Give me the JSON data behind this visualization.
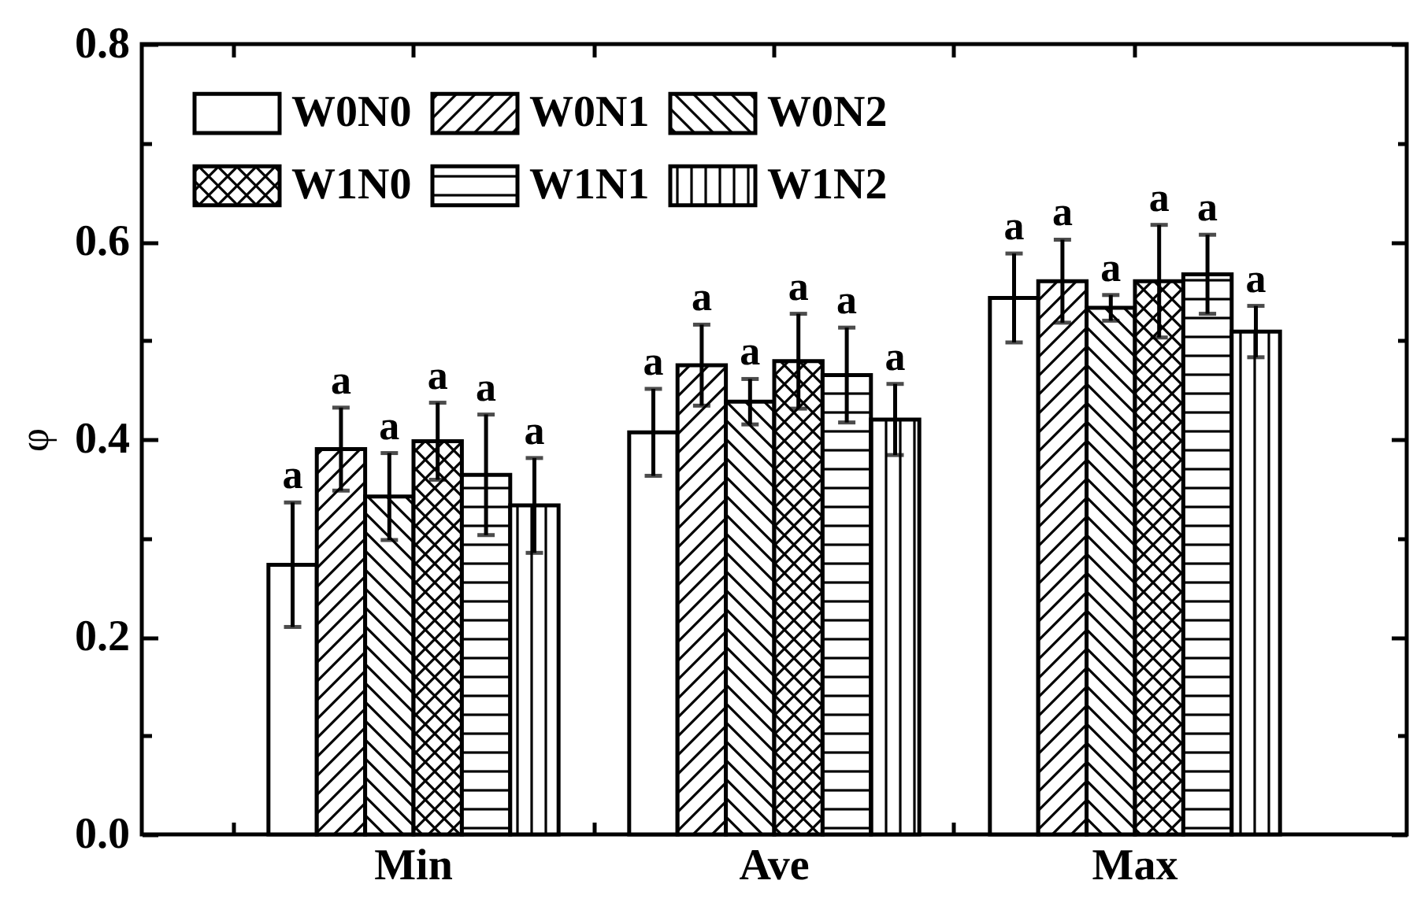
{
  "chart_data": {
    "type": "bar",
    "ylabel": "φ",
    "categories": [
      "Min",
      "Ave",
      "Max"
    ],
    "ylim": [
      0,
      0.8
    ],
    "yticks": [
      {
        "value": 0,
        "label": "0.0"
      },
      {
        "value": 0.1,
        "label": null
      },
      0.2,
      {
        "value": 0.3,
        "label": null
      },
      0.4,
      {
        "value": 0.5,
        "label": null
      },
      0.6,
      {
        "value": 0.7,
        "label": null
      },
      0.8
    ],
    "legend": "top left",
    "series": [
      {
        "name": "W0N0",
        "color": "#000000",
        "values": [
          0.273,
          0.407,
          0.543
        ],
        "errors": [
          0.063,
          0.044,
          0.045
        ],
        "value_labels": [
          "a",
          "a",
          "a"
        ]
      },
      {
        "name": "W0N1",
        "color": "#000000",
        "values": [
          0.39,
          0.475,
          0.56
        ],
        "errors": [
          0.042,
          0.041,
          0.042
        ],
        "value_labels": [
          "a",
          "a",
          "a"
        ]
      },
      {
        "name": "W0N2",
        "color": "#000000",
        "values": [
          0.342,
          0.438,
          0.533
        ],
        "errors": [
          0.044,
          0.023,
          0.013
        ],
        "value_labels": [
          "a",
          "a",
          "a"
        ]
      },
      {
        "name": "W1N0",
        "color": "#000000",
        "values": [
          0.398,
          0.479,
          0.56
        ],
        "errors": [
          0.039,
          0.048,
          0.057
        ],
        "value_labels": [
          "a",
          "a",
          "a"
        ]
      },
      {
        "name": "W1N1",
        "color": "#000000",
        "values": [
          0.364,
          0.465,
          0.567
        ],
        "errors": [
          0.061,
          0.048,
          0.04
        ],
        "value_labels": [
          "a",
          "a",
          "a"
        ]
      },
      {
        "name": "W1N2",
        "color": "#000000",
        "values": [
          0.333,
          0.42,
          0.509
        ],
        "errors": [
          0.048,
          0.036,
          0.026
        ],
        "value_labels": [
          "a",
          "a",
          "a"
        ]
      }
    ]
  }
}
